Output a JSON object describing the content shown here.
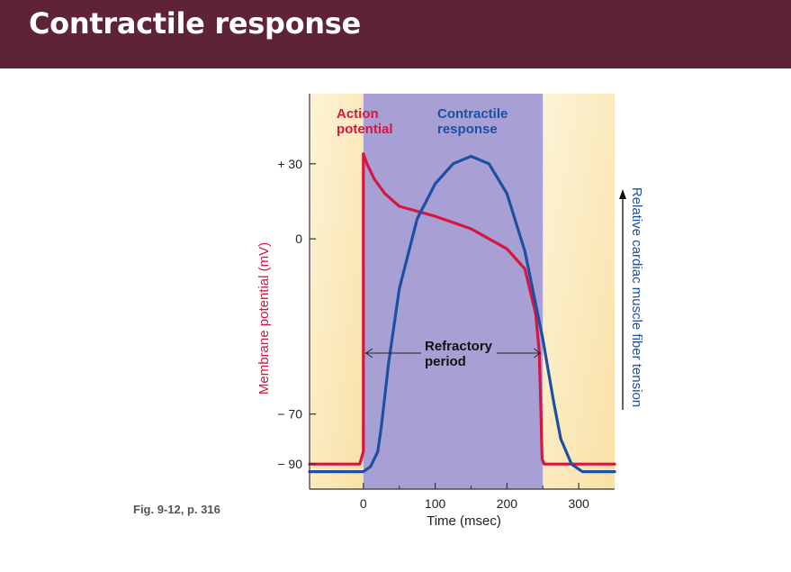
{
  "header": {
    "title": "Contractile response"
  },
  "figure": {
    "caption": "Fig. 9-12, p. 316"
  },
  "chart_data": {
    "type": "line",
    "xlabel": "Time (msec)",
    "ylabel_left": "Membrane potential (mV)",
    "ylabel_right": "Relative cardiac muscle fiber tension",
    "x_ticks": [
      0,
      100,
      200,
      300
    ],
    "y_ticks": [
      {
        "value": 30,
        "label": "+ 30"
      },
      {
        "value": 0,
        "label": "0"
      },
      {
        "value": -70,
        "label": "− 70"
      },
      {
        "value": -90,
        "label": "− 90"
      }
    ],
    "xlim": [
      -75,
      350
    ],
    "ylim": [
      -100,
      58
    ],
    "refractory_period": {
      "label_line1": "Refractory",
      "label_line2": "period",
      "start": 0,
      "end": 250
    },
    "series": [
      {
        "name_line1": "Action",
        "name_line2": "potential",
        "color": "#d6163f",
        "points": [
          [
            -75,
            -90
          ],
          [
            -5,
            -90
          ],
          [
            0,
            -85
          ],
          [
            0,
            34
          ],
          [
            5,
            30
          ],
          [
            15,
            24
          ],
          [
            30,
            18
          ],
          [
            50,
            13
          ],
          [
            100,
            9
          ],
          [
            150,
            4
          ],
          [
            200,
            -4
          ],
          [
            225,
            -12
          ],
          [
            240,
            -30
          ],
          [
            245,
            -45
          ],
          [
            247,
            -65
          ],
          [
            249,
            -88
          ],
          [
            252,
            -90
          ],
          [
            350,
            -90
          ]
        ]
      },
      {
        "name_line1": "Contractile",
        "name_line2": "response",
        "color": "#1d4fa3",
        "points": [
          [
            -75,
            -93
          ],
          [
            0,
            -93
          ],
          [
            10,
            -91
          ],
          [
            20,
            -85
          ],
          [
            25,
            -75
          ],
          [
            35,
            -50
          ],
          [
            50,
            -20
          ],
          [
            75,
            8
          ],
          [
            100,
            22
          ],
          [
            125,
            30
          ],
          [
            150,
            33
          ],
          [
            175,
            30
          ],
          [
            200,
            18
          ],
          [
            225,
            -5
          ],
          [
            250,
            -40
          ],
          [
            265,
            -65
          ],
          [
            275,
            -80
          ],
          [
            290,
            -90
          ],
          [
            305,
            -93
          ],
          [
            350,
            -93
          ]
        ]
      }
    ],
    "colors": {
      "refractory_fill": "#a8a0d4",
      "outer_fill": "#fbe7b8",
      "axis": "#333333",
      "text": "#222222"
    }
  }
}
